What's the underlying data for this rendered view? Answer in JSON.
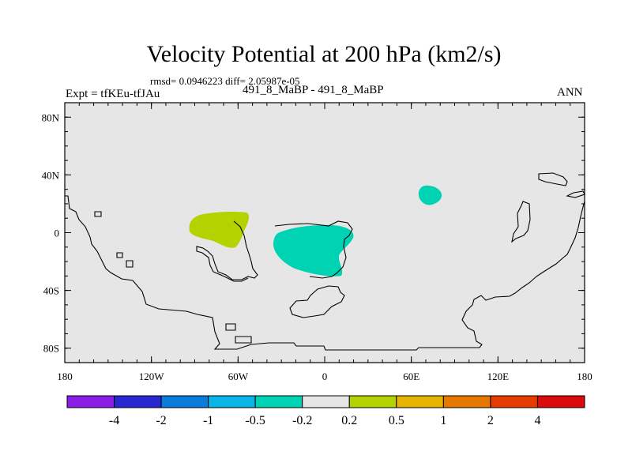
{
  "title": "Velocity Potential at 200 hPa (km2/s)",
  "stats": "rmsd= 0.0946223 diff= 2.05987e-05",
  "left_label": "Expt = tfKEu-tfJAu",
  "center_label": "491_8_MaBP - 491_8_MaBP",
  "right_label": "ANN",
  "chart_data": {
    "type": "heatmap",
    "projection": "cylindrical equidistant",
    "xlim": [
      -180,
      180
    ],
    "ylim": [
      -90,
      90
    ],
    "x_ticks": [
      {
        "value": -180,
        "label": "180"
      },
      {
        "value": -120,
        "label": "120W"
      },
      {
        "value": -60,
        "label": "60W"
      },
      {
        "value": 0,
        "label": "0"
      },
      {
        "value": 60,
        "label": "60E"
      },
      {
        "value": 120,
        "label": "120E"
      },
      {
        "value": 180,
        "label": "180"
      }
    ],
    "y_ticks": [
      {
        "value": 80,
        "label": "80N"
      },
      {
        "value": 40,
        "label": "40N"
      },
      {
        "value": 0,
        "label": "0"
      },
      {
        "value": -40,
        "label": "40S"
      },
      {
        "value": -80,
        "label": "80S"
      }
    ],
    "background_color": "#e6e6e6",
    "colorbar": {
      "levels": [
        "-4",
        "-2",
        "-1",
        "-0.5",
        "-0.2",
        "0.2",
        "0.5",
        "1",
        "2",
        "4"
      ],
      "colors": [
        "#8a1ee6",
        "#2828d2",
        "#0a7ddc",
        "#0ab4e6",
        "#00d2b4",
        "#e6e6e6",
        "#b4d200",
        "#e6b400",
        "#e67800",
        "#e63c00",
        "#dc0a0a"
      ]
    },
    "shaded_regions": [
      {
        "color": "#b4d200",
        "range": "0.2 to 0.5",
        "center_lon": -64,
        "center_lat": 4
      },
      {
        "color": "#00d2b4",
        "range": "-0.5 to -0.2",
        "center_lon": -8,
        "center_lat": -9
      },
      {
        "color": "#00d2b4",
        "range": "-0.5 to -0.2",
        "center_lon": 74,
        "center_lat": 26
      }
    ]
  }
}
